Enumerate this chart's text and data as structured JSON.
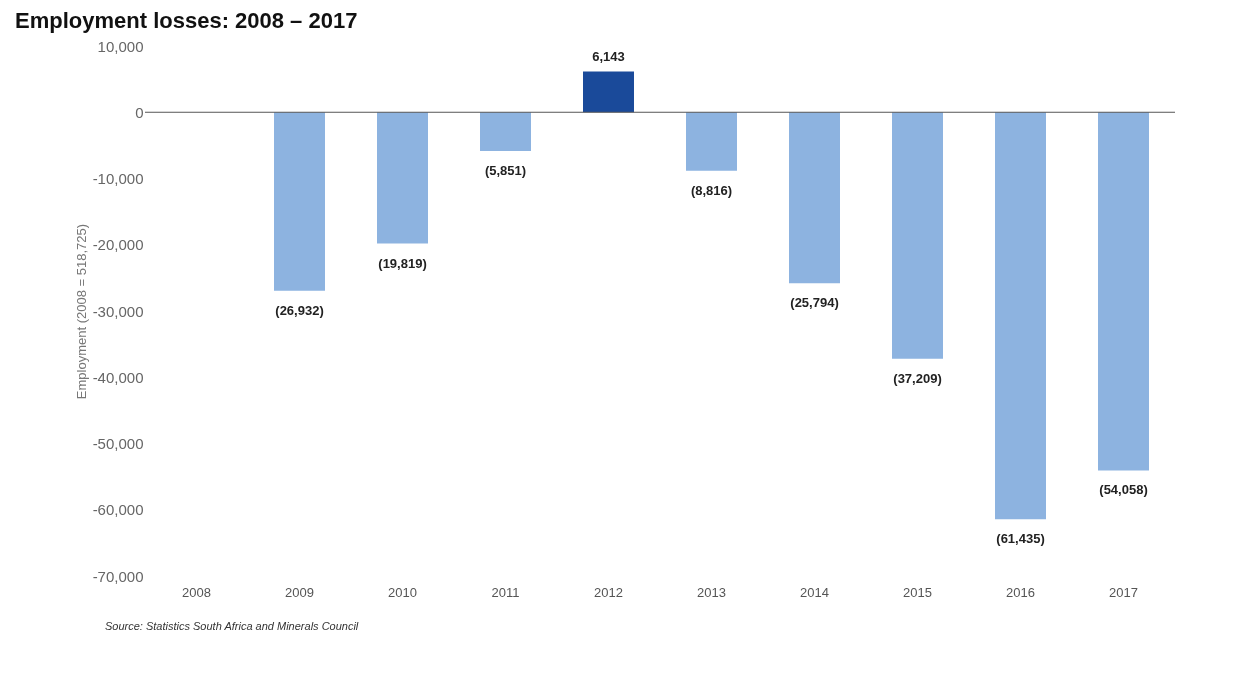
{
  "chart_data": {
    "type": "bar",
    "title": "Employment losses: 2008 – 2017",
    "ylabel": "Employment (2008 = 518,725)",
    "categories": [
      "2008",
      "2009",
      "2010",
      "2011",
      "2012",
      "2013",
      "2014",
      "2015",
      "2016",
      "2017"
    ],
    "values": [
      0,
      -26932,
      -19819,
      -5851,
      6143,
      -8816,
      -25794,
      -37209,
      -61435,
      -54058
    ],
    "value_labels": [
      null,
      "(26,932)",
      "(19,819)",
      "(5,851)",
      "6,143",
      "(8,816)",
      "(25,794)",
      "(37,209)",
      "(61,435)",
      "(54,058)"
    ],
    "colors": [
      "#8db3e0",
      "#8db3e0",
      "#8db3e0",
      "#8db3e0",
      "#1a4a9a",
      "#8db3e0",
      "#8db3e0",
      "#8db3e0",
      "#8db3e0",
      "#8db3e0"
    ],
    "ylim": [
      -70000,
      10000
    ],
    "yticks": [
      {
        "value": -70000,
        "label": "-70,000"
      },
      {
        "value": -60000,
        "label": "-60,000"
      },
      {
        "value": -50000,
        "label": "-50,000"
      },
      {
        "value": -40000,
        "label": "-40,000"
      },
      {
        "value": -30000,
        "label": "-30,000"
      },
      {
        "value": -20000,
        "label": "-20,000"
      },
      {
        "value": -10000,
        "label": "-10,000"
      },
      {
        "value": 0,
        "label": "0"
      },
      {
        "value": 10000,
        "label": "10,000"
      }
    ],
    "ref_lines": [
      {
        "axis": "y",
        "value": 0,
        "color": "#555555"
      }
    ],
    "grid": false,
    "annotations": [
      "Source: Statistics South Africa and Minerals Council"
    ]
  }
}
